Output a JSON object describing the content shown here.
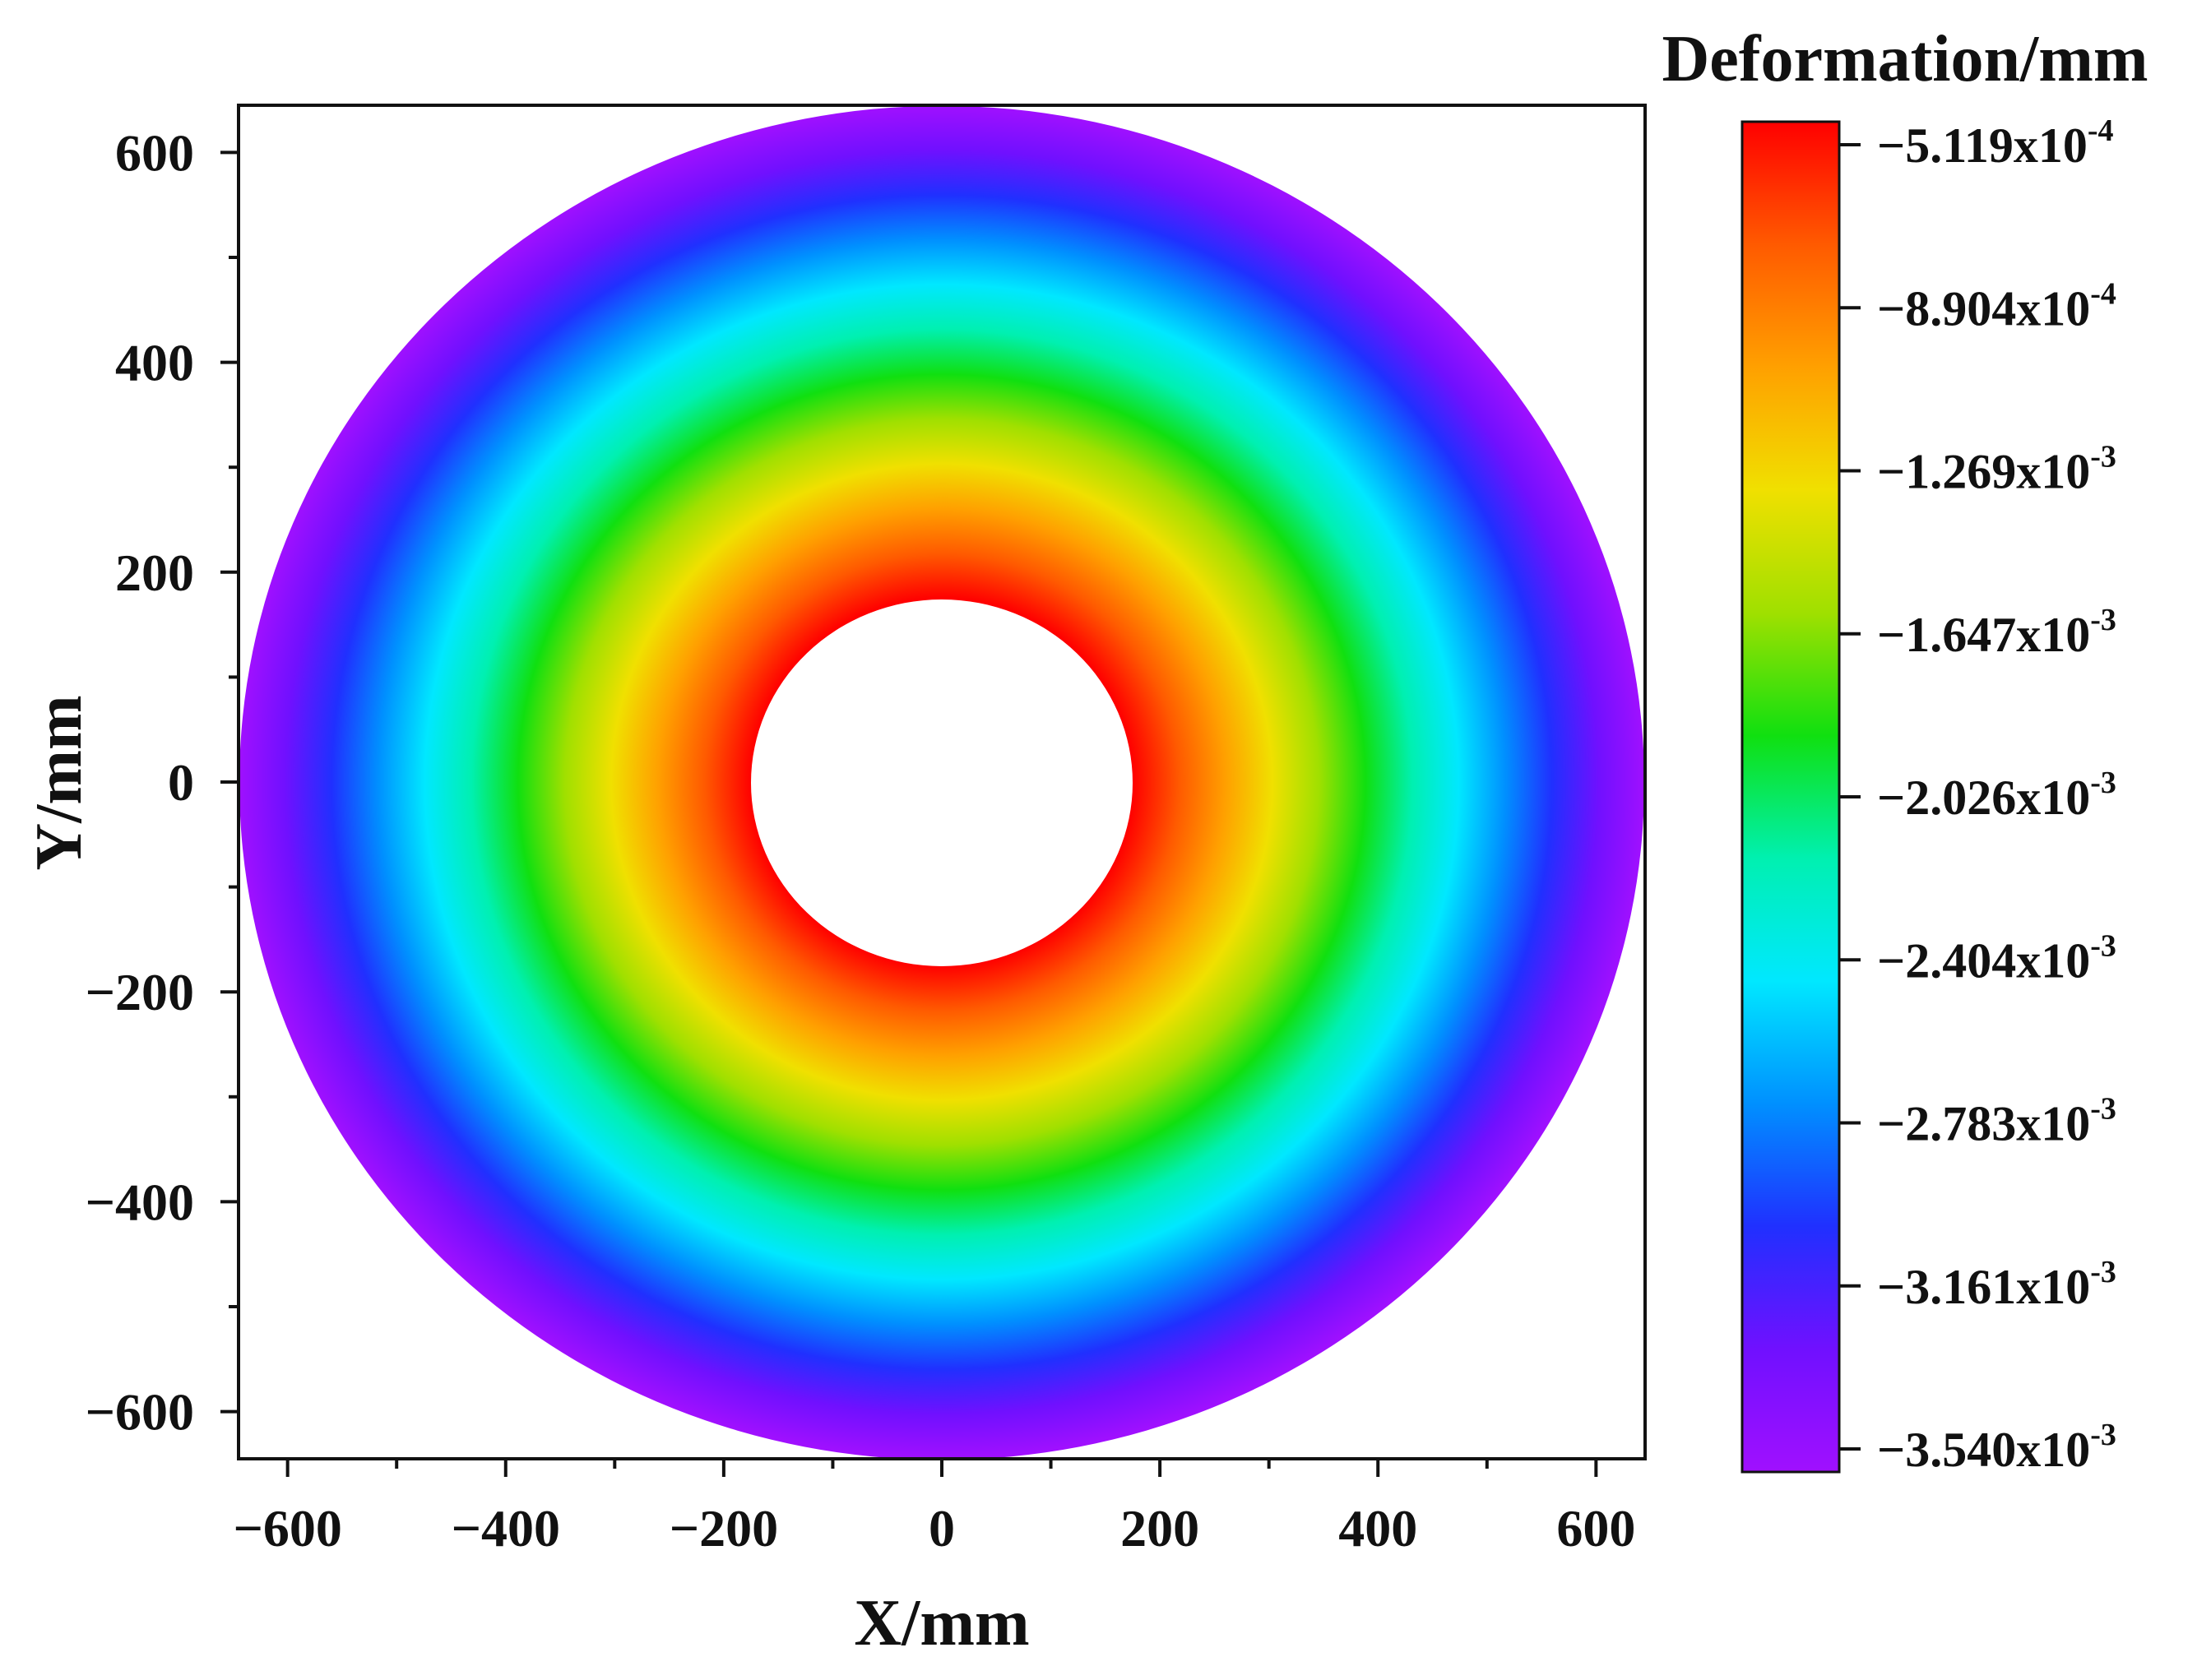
{
  "chart_data": {
    "type": "heatmap",
    "subtype": "annular-contour",
    "xlabel": "X/mm",
    "ylabel": "Y/mm",
    "xlim": [
      -645,
      645
    ],
    "ylim": [
      -645,
      645
    ],
    "xticks": [
      -600,
      -400,
      -200,
      0,
      200,
      400,
      600
    ],
    "yticks": [
      -600,
      -400,
      -200,
      0,
      200,
      400,
      600
    ],
    "xtick_labels": [
      "−600",
      "−400",
      "−200",
      "0",
      "200",
      "400",
      "600"
    ],
    "ytick_labels": [
      "−600",
      "−400",
      "−200",
      "0",
      "200",
      "400",
      "600"
    ],
    "annulus": {
      "inner_radius": 175,
      "outer_radius": 645
    },
    "field": {
      "quantity": "Deformation",
      "unit": "mm",
      "max_at": "inner radius",
      "min_at": "outer radius",
      "max_value": -0.0005119,
      "min_value": -0.00354
    },
    "colorbar": {
      "title": "Deformation/mm",
      "levels": [
        {
          "mantissa": "−5.119",
          "base": "x10",
          "exp": "-4"
        },
        {
          "mantissa": "−8.904",
          "base": "x10",
          "exp": "-4"
        },
        {
          "mantissa": "−1.269",
          "base": "x10",
          "exp": "-3"
        },
        {
          "mantissa": "−1.647",
          "base": "x10",
          "exp": "-3"
        },
        {
          "mantissa": "−2.026",
          "base": "x10",
          "exp": "-3"
        },
        {
          "mantissa": "−2.404",
          "base": "x10",
          "exp": "-3"
        },
        {
          "mantissa": "−2.783",
          "base": "x10",
          "exp": "-3"
        },
        {
          "mantissa": "−3.161",
          "base": "x10",
          "exp": "-3"
        },
        {
          "mantissa": "−3.540",
          "base": "x10",
          "exp": "-3"
        }
      ],
      "colors_top_to_bottom": [
        "#ff0000",
        "#ff5a00",
        "#ffa000",
        "#f0e000",
        "#a0e000",
        "#10e010",
        "#00f0b0",
        "#00e8ff",
        "#0090ff",
        "#2030ff",
        "#7010ff",
        "#a010ff"
      ]
    }
  }
}
